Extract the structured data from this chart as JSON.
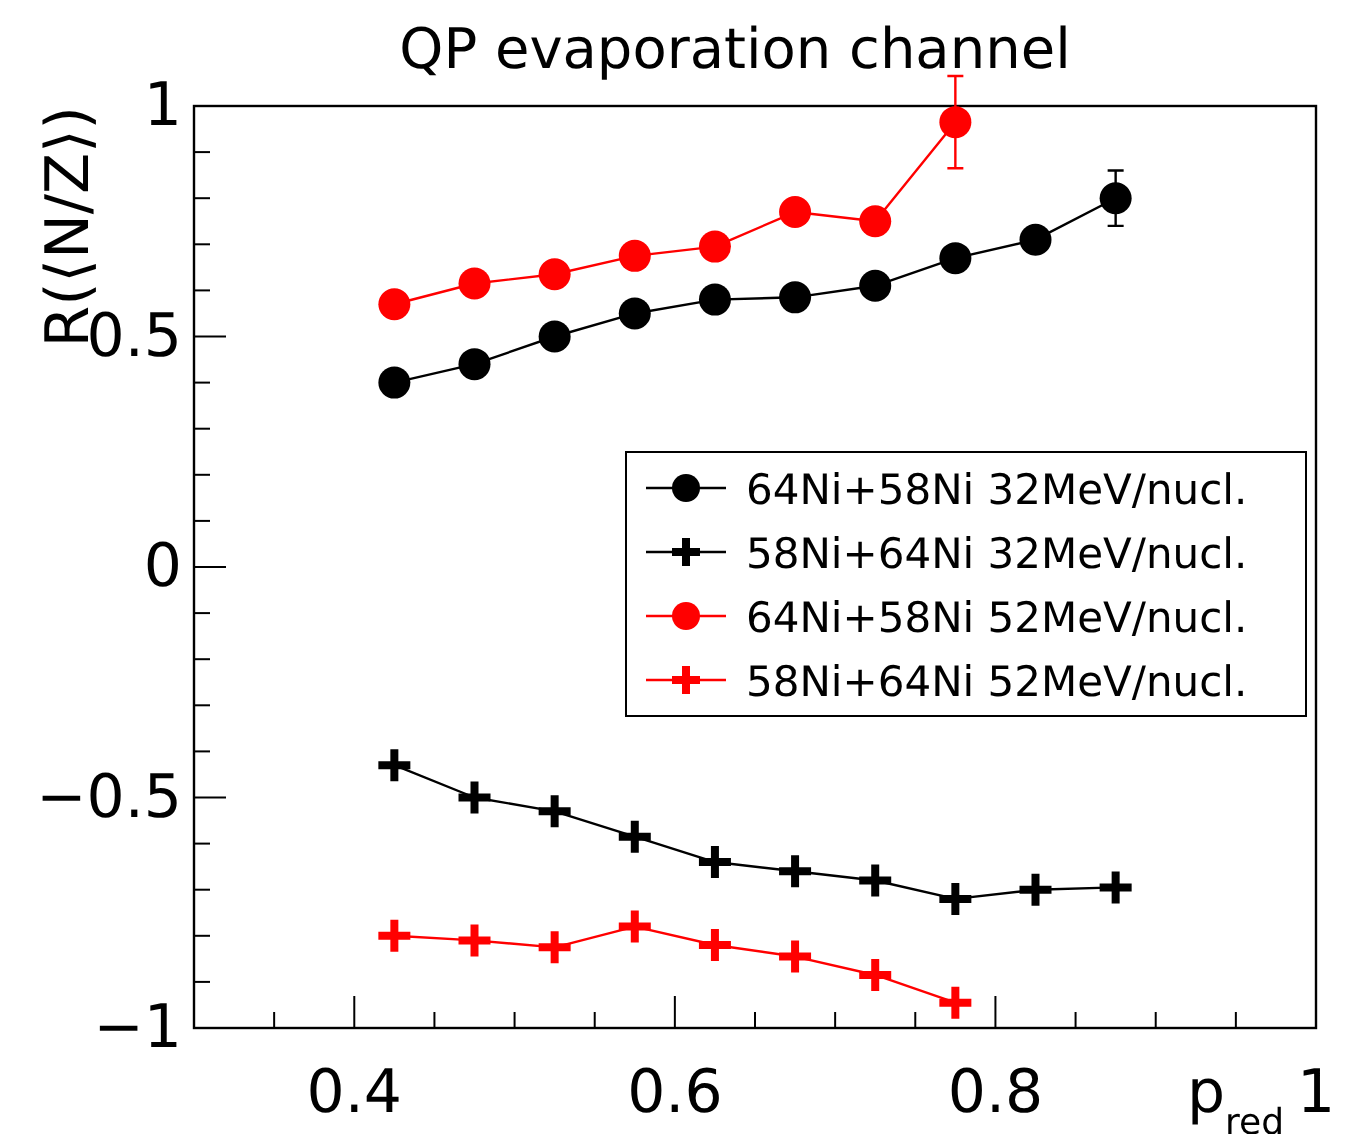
{
  "chart_data": {
    "type": "line",
    "title": "QP evaporation channel",
    "xlabel": "p$_{red}$",
    "ylabel": "R(⟨N/Z⟩)",
    "xlim": [
      0.3,
      1
    ],
    "ylim": [
      -1,
      1
    ],
    "xticks": [
      {
        "value": 0.35,
        "label": null
      },
      0.4,
      {
        "value": 0.45,
        "label": null
      },
      {
        "value": 0.5,
        "label": null
      },
      {
        "value": 0.55,
        "label": null
      },
      0.6,
      {
        "value": 0.65,
        "label": null
      },
      {
        "value": 0.7,
        "label": null
      },
      {
        "value": 0.75,
        "label": null
      },
      0.8,
      {
        "value": 0.85,
        "label": null
      },
      {
        "value": 0.9,
        "label": null
      },
      {
        "value": 0.95,
        "label": null
      },
      1
    ],
    "yticks": [
      -1,
      {
        "value": -0.9,
        "label": null
      },
      {
        "value": -0.8,
        "label": null
      },
      {
        "value": -0.7,
        "label": null
      },
      {
        "value": -0.6,
        "label": null
      },
      -0.5,
      {
        "value": -0.4,
        "label": null
      },
      {
        "value": -0.3,
        "label": null
      },
      {
        "value": -0.2,
        "label": null
      },
      {
        "value": -0.1,
        "label": null
      },
      0,
      {
        "value": 0.1,
        "label": null
      },
      {
        "value": 0.2,
        "label": null
      },
      {
        "value": 0.3,
        "label": null
      },
      {
        "value": 0.4,
        "label": null
      },
      0.5,
      {
        "value": 0.6,
        "label": null
      },
      {
        "value": 0.7,
        "label": null
      },
      {
        "value": 0.8,
        "label": null
      },
      {
        "value": 0.9,
        "label": null
      },
      1
    ],
    "grid": false,
    "legend": "right",
    "line_style": "solid",
    "x": [
      0.425,
      0.475,
      0.525,
      0.575,
      0.625,
      0.675,
      0.725,
      0.775,
      0.825,
      0.875
    ],
    "series": [
      {
        "name": "64Ni+58Ni 32MeV/nucl.",
        "color": "#000000",
        "marker": "circle",
        "values": [
          0.4,
          0.44,
          0.5,
          0.55,
          0.58,
          0.585,
          0.61,
          0.67,
          0.71,
          0.8
        ],
        "errors": [
          null,
          null,
          null,
          null,
          null,
          null,
          null,
          null,
          null,
          0.06
        ]
      },
      {
        "name": "58Ni+64Ni 32MeV/nucl.",
        "color": "#000000",
        "marker": "cross",
        "values": [
          -0.43,
          -0.5,
          -0.53,
          -0.585,
          -0.64,
          -0.66,
          -0.68,
          -0.72,
          -0.7,
          -0.695
        ]
      },
      {
        "name": "64Ni+58Ni 52MeV/nucl.",
        "color": "#ff0000",
        "marker": "circle",
        "x": [
          0.425,
          0.475,
          0.525,
          0.575,
          0.625,
          0.675,
          0.725,
          0.775
        ],
        "values": [
          0.57,
          0.615,
          0.635,
          0.675,
          0.695,
          0.77,
          0.75,
          0.965
        ],
        "errors": [
          null,
          null,
          null,
          null,
          null,
          null,
          null,
          0.1
        ]
      },
      {
        "name": "58Ni+64Ni 52MeV/nucl.",
        "color": "#ff0000",
        "marker": "cross",
        "x": [
          0.425,
          0.475,
          0.525,
          0.575,
          0.625,
          0.675,
          0.725,
          0.775
        ],
        "values": [
          -0.8,
          -0.81,
          -0.825,
          -0.78,
          -0.82,
          -0.845,
          -0.885,
          -0.945
        ]
      }
    ]
  }
}
